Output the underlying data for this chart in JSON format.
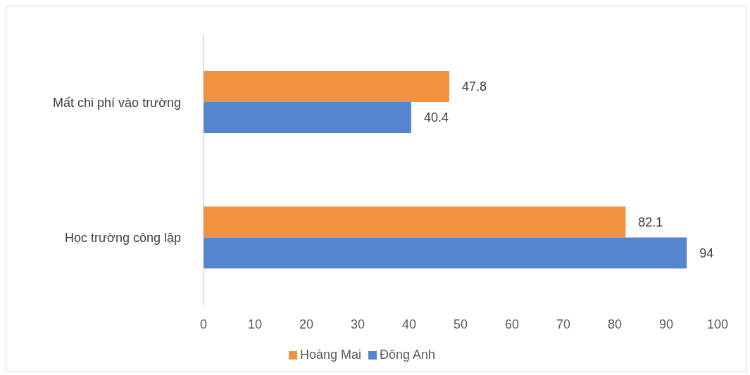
{
  "chart_data": {
    "type": "bar",
    "orientation": "horizontal",
    "categories": [
      "Mất chi phí vào trường",
      "Học trường công lập"
    ],
    "series": [
      {
        "name": "Hoàng Mai",
        "color": "#f0923e",
        "values": [
          47.8,
          82.1
        ]
      },
      {
        "name": "Đông Anh",
        "color": "#5585d0",
        "values": [
          40.4,
          94
        ]
      }
    ],
    "xlim": [
      0,
      100
    ],
    "xticks": [
      0,
      10,
      20,
      30,
      40,
      50,
      60,
      70,
      80,
      90,
      100
    ],
    "grid": false,
    "legend": "bottom",
    "data_labels": true
  }
}
